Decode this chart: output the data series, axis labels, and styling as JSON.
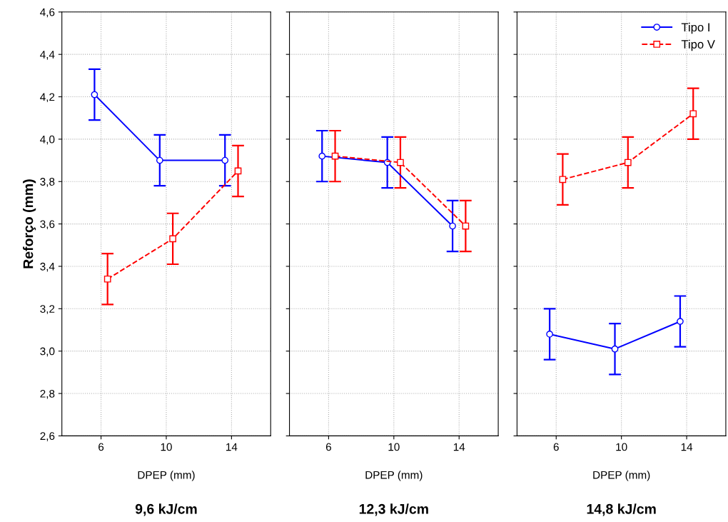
{
  "chart_data": [
    {
      "type": "line",
      "title": "9,6 kJ/cm",
      "xlabel": "DPEP (mm)",
      "ylabel": "Reforço (mm)",
      "categories": [
        "6",
        "10",
        "14"
      ],
      "series": [
        {
          "color": "#0000ff",
          "values": [
            4.21,
            3.9,
            3.9
          ],
          "errors": [
            0.12,
            0.12,
            0.12
          ],
          "marker": "circle",
          "line_style": "solid"
        },
        {
          "color": "#ff0000",
          "values": [
            3.34,
            3.53,
            3.85
          ],
          "errors": [
            0.12,
            0.12,
            0.12
          ],
          "marker": "square",
          "line_style": "dashed"
        }
      ],
      "ylim": [
        2.6,
        4.6
      ],
      "yticks": [
        {
          "value": 2.6,
          "label": "2,6"
        },
        {
          "value": 2.8,
          "label": "2,8"
        },
        {
          "value": 3.0,
          "label": "3,0"
        },
        {
          "value": 3.2,
          "label": "3,2"
        },
        {
          "value": 3.4,
          "label": "3,4"
        },
        {
          "value": 3.6,
          "label": "3,6"
        },
        {
          "value": 3.8,
          "label": "3,8"
        },
        {
          "value": 4.0,
          "label": "4,0"
        },
        {
          "value": 4.2,
          "label": "4,2"
        },
        {
          "value": 4.4,
          "label": "4,4"
        },
        {
          "value": 4.6,
          "label": "4,6"
        }
      ],
      "grid": true
    },
    {
      "type": "line",
      "title": "12,3 kJ/cm",
      "xlabel": "DPEP (mm)",
      "categories": [
        "6",
        "10",
        "14"
      ],
      "series": [
        {
          "color": "#0000ff",
          "values": [
            3.92,
            3.89,
            3.59
          ],
          "errors": [
            0.12,
            0.12,
            0.12
          ],
          "marker": "circle",
          "line_style": "solid"
        },
        {
          "color": "#ff0000",
          "values": [
            3.92,
            3.89,
            3.59
          ],
          "errors": [
            0.12,
            0.12,
            0.12
          ],
          "marker": "square",
          "line_style": "dashed"
        }
      ],
      "ylim": [
        2.6,
        4.6
      ],
      "yticks": [
        2.6,
        2.8,
        3.0,
        3.2,
        3.4,
        3.6,
        3.8,
        4.0,
        4.2,
        4.4,
        4.6
      ],
      "tick_labels": "x",
      "grid": true
    },
    {
      "type": "line",
      "title": "14,8 kJ/cm",
      "xlabel": "DPEP (mm)",
      "categories": [
        "6",
        "10",
        "14"
      ],
      "series": [
        {
          "name": "Tipo I",
          "color": "#0000ff",
          "values": [
            3.08,
            3.01,
            3.14
          ],
          "errors": [
            0.12,
            0.12,
            0.12
          ],
          "marker": "circle",
          "line_style": "solid"
        },
        {
          "name": "Tipo V",
          "color": "#ff0000",
          "values": [
            3.81,
            3.89,
            4.12
          ],
          "errors": [
            0.12,
            0.12,
            0.12
          ],
          "marker": "square",
          "line_style": "dashed"
        }
      ],
      "ylim": [
        2.6,
        4.6
      ],
      "yticks": [
        2.6,
        2.8,
        3.0,
        3.2,
        3.4,
        3.6,
        3.8,
        4.0,
        4.2,
        4.4,
        4.6
      ],
      "tick_labels": "x",
      "grid": true,
      "legend": "top right"
    }
  ]
}
